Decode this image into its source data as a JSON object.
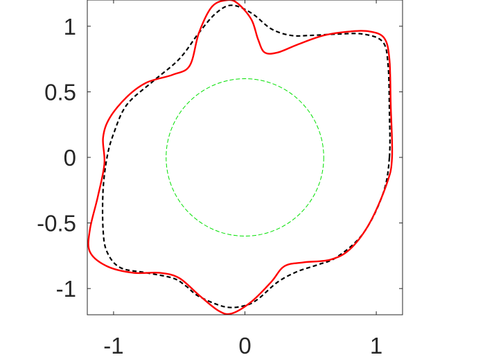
{
  "chart_data": {
    "type": "line",
    "title": "",
    "xlabel": "",
    "ylabel": "",
    "xlim": [
      -1.2,
      1.2
    ],
    "ylim": [
      -1.2,
      1.2
    ],
    "x_ticks": [
      {
        "value": -1,
        "label": "-1"
      },
      {
        "value": 0,
        "label": "0"
      },
      {
        "value": 1,
        "label": "1"
      }
    ],
    "y_ticks": [
      {
        "value": 1,
        "label": "1"
      },
      {
        "value": 0.5,
        "label": "0.5"
      },
      {
        "value": 0,
        "label": "0"
      },
      {
        "value": -0.5,
        "label": "-0.5"
      },
      {
        "value": -1,
        "label": "-1"
      }
    ],
    "grid": false,
    "legend": "none",
    "series": [
      {
        "style": "dashed",
        "color": "#00e000",
        "shape": "circle",
        "center": [
          0,
          0
        ],
        "radius": 0.6
      },
      {
        "style": "dashed",
        "color": "#000000",
        "points": [
          [
            1.1,
            0.0
          ],
          [
            1.1,
            0.35
          ],
          [
            1.09,
            0.7
          ],
          [
            1.05,
            0.88
          ],
          [
            0.9,
            0.94
          ],
          [
            0.7,
            0.94
          ],
          [
            0.5,
            0.93
          ],
          [
            0.35,
            0.93
          ],
          [
            0.2,
            0.98
          ],
          [
            0.05,
            1.1
          ],
          [
            -0.1,
            1.16
          ],
          [
            -0.22,
            1.1
          ],
          [
            -0.35,
            0.95
          ],
          [
            -0.5,
            0.75
          ],
          [
            -0.7,
            0.58
          ],
          [
            -0.9,
            0.4
          ],
          [
            -1.0,
            0.18
          ],
          [
            -1.05,
            0.0
          ],
          [
            -1.08,
            -0.25
          ],
          [
            -1.08,
            -0.55
          ],
          [
            -1.05,
            -0.72
          ],
          [
            -0.95,
            -0.84
          ],
          [
            -0.75,
            -0.88
          ],
          [
            -0.55,
            -0.92
          ],
          [
            -0.45,
            -0.98
          ],
          [
            -0.35,
            -1.06
          ],
          [
            -0.15,
            -1.14
          ],
          [
            0.0,
            -1.13
          ],
          [
            0.1,
            -1.08
          ],
          [
            0.25,
            -0.95
          ],
          [
            0.4,
            -0.87
          ],
          [
            0.55,
            -0.82
          ],
          [
            0.7,
            -0.76
          ],
          [
            0.9,
            -0.58
          ],
          [
            1.05,
            -0.28
          ],
          [
            1.1,
            0.0
          ]
        ]
      },
      {
        "style": "solid",
        "color": "#ff0000",
        "points": [
          [
            1.12,
            0.0
          ],
          [
            1.11,
            0.4
          ],
          [
            1.1,
            0.75
          ],
          [
            1.06,
            0.91
          ],
          [
            0.95,
            0.96
          ],
          [
            0.8,
            0.96
          ],
          [
            0.6,
            0.93
          ],
          [
            0.4,
            0.86
          ],
          [
            0.25,
            0.8
          ],
          [
            0.15,
            0.8
          ],
          [
            0.1,
            0.9
          ],
          [
            0.05,
            1.05
          ],
          [
            -0.05,
            1.17
          ],
          [
            -0.13,
            1.2
          ],
          [
            -0.25,
            1.15
          ],
          [
            -0.35,
            0.95
          ],
          [
            -0.42,
            0.7
          ],
          [
            -0.55,
            0.63
          ],
          [
            -0.75,
            0.57
          ],
          [
            -0.9,
            0.46
          ],
          [
            -1.03,
            0.3
          ],
          [
            -1.08,
            0.15
          ],
          [
            -1.07,
            -0.05
          ],
          [
            -1.12,
            -0.3
          ],
          [
            -1.18,
            -0.55
          ],
          [
            -1.18,
            -0.72
          ],
          [
            -1.05,
            -0.83
          ],
          [
            -0.85,
            -0.88
          ],
          [
            -0.65,
            -0.88
          ],
          [
            -0.5,
            -0.92
          ],
          [
            -0.35,
            -1.05
          ],
          [
            -0.2,
            -1.17
          ],
          [
            -0.1,
            -1.19
          ],
          [
            0.05,
            -1.1
          ],
          [
            0.2,
            -0.95
          ],
          [
            0.3,
            -0.83
          ],
          [
            0.45,
            -0.8
          ],
          [
            0.65,
            -0.78
          ],
          [
            0.8,
            -0.7
          ],
          [
            0.95,
            -0.5
          ],
          [
            1.08,
            -0.2
          ],
          [
            1.12,
            0.0
          ]
        ]
      }
    ]
  }
}
